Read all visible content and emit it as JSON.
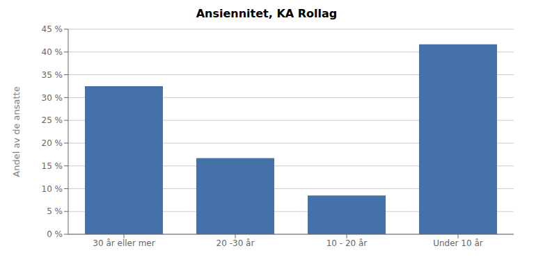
{
  "chart_data": {
    "type": "bar",
    "title": "Ansiennitet, KA Rollag",
    "ylabel": "Andel av de ansatte",
    "categories": [
      "30 år eller mer",
      "20 -30 år",
      "10 - 20 år",
      "Under 10 år"
    ],
    "values": [
      0.325,
      0.167,
      0.085,
      0.417
    ],
    "color": "#4472A8",
    "ylim": [
      0,
      0.45
    ],
    "yticks": [
      {
        "value": 0,
        "label": "0 %"
      },
      {
        "value": 0.05,
        "label": "5 %"
      },
      {
        "value": 0.1,
        "label": "10 %"
      },
      {
        "value": 0.15,
        "label": "15 %"
      },
      {
        "value": 0.2,
        "label": "20 %"
      },
      {
        "value": 0.25,
        "label": "25 %"
      },
      {
        "value": 0.3,
        "label": "30 %"
      },
      {
        "value": 0.35,
        "label": "35 %"
      },
      {
        "value": 0.4,
        "label": "40 %"
      },
      {
        "value": 0.45,
        "label": "45 %"
      }
    ],
    "grid": true
  }
}
